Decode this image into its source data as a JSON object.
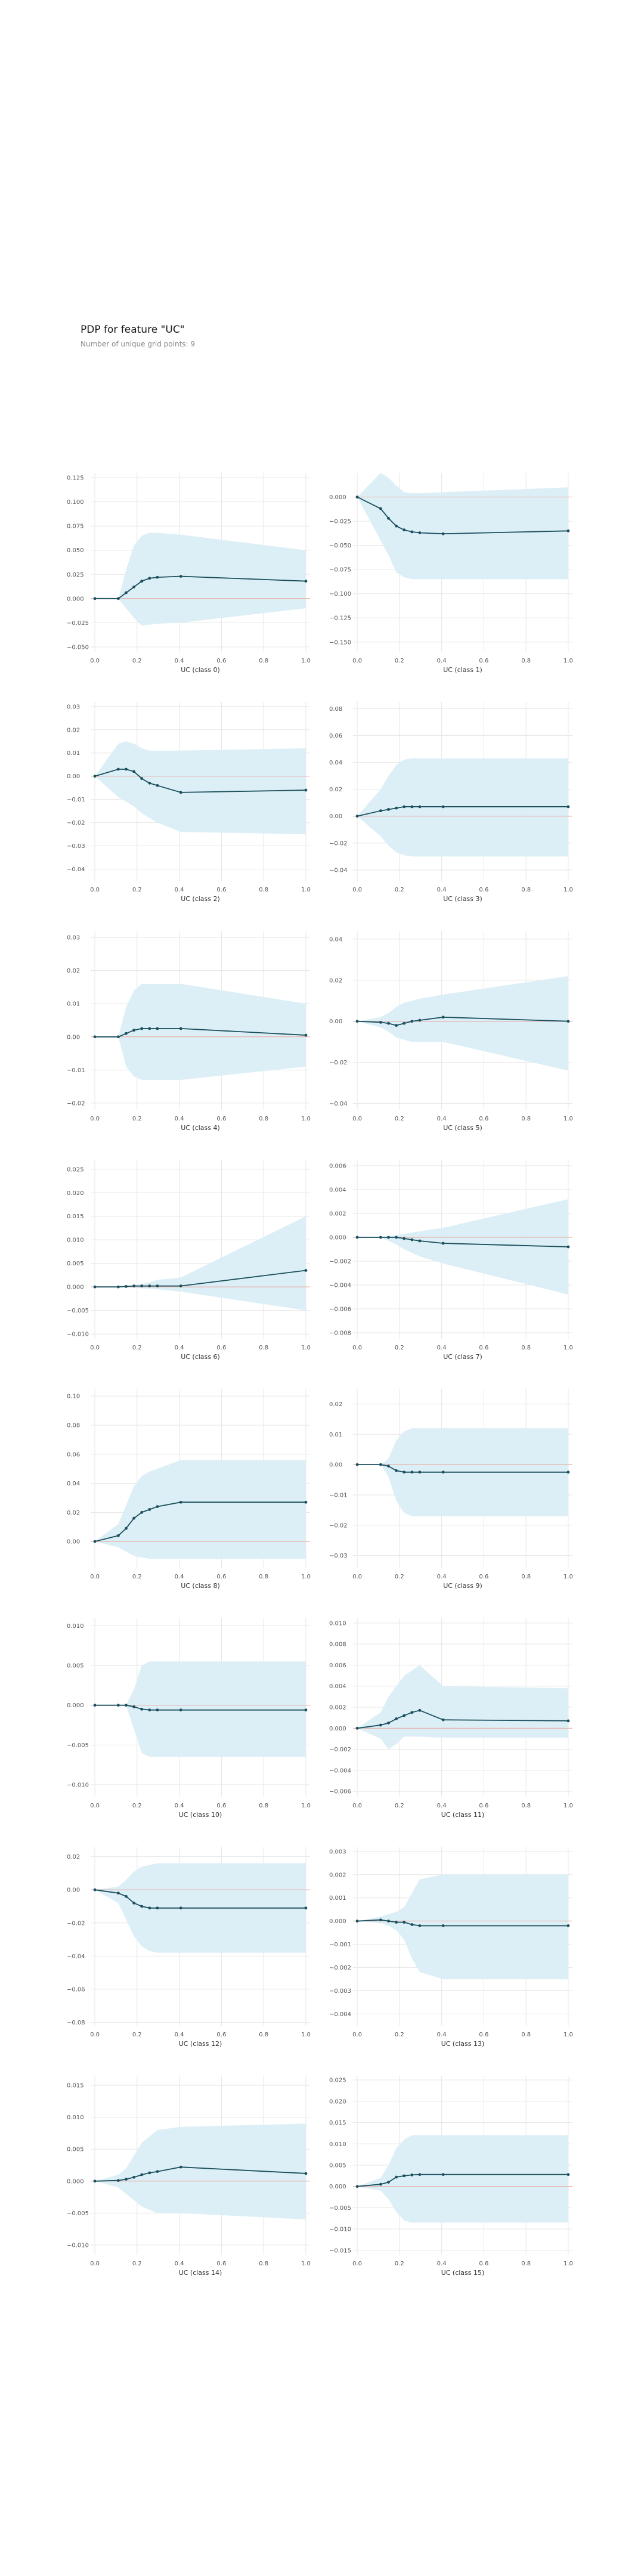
{
  "header": {
    "title": "PDP for feature \"UC\"",
    "subtitle": "Number of unique grid points: 9"
  },
  "colors": {
    "band": "#dbeef5",
    "line": "#1a4f5e",
    "marker": "#1a4f5e",
    "baseline": "#e8a49a",
    "grid": "#e6e6e6"
  },
  "chart_data": [
    {
      "type": "line",
      "xlabel": "UC (class 0)",
      "grid": true,
      "x": [
        0.0,
        0.1111,
        0.1481,
        0.1852,
        0.2222,
        0.2593,
        0.2963,
        0.4074,
        1.0
      ],
      "xticks": [
        0.0,
        0.2,
        0.4,
        0.6,
        0.8,
        1.0
      ],
      "xlim": [
        -0.02,
        1.02
      ],
      "yticks": [
        -0.05,
        -0.025,
        0.0,
        0.025,
        0.05,
        0.075,
        0.1,
        0.125
      ],
      "ytick_labels": [
        "−0.050",
        "−0.025",
        "0.000",
        "0.025",
        "0.050",
        "0.075",
        "0.100",
        "0.125"
      ],
      "ylim": [
        -0.055,
        0.13
      ],
      "values": [
        0.0,
        0.0,
        0.006,
        0.012,
        0.018,
        0.021,
        0.022,
        0.023,
        0.018
      ],
      "upper": [
        0.0,
        0.0,
        0.03,
        0.055,
        0.065,
        0.068,
        0.068,
        0.066,
        0.05
      ],
      "lower": [
        0.0,
        0.0,
        -0.01,
        -0.02,
        -0.028,
        -0.027,
        -0.026,
        -0.025,
        -0.01
      ]
    },
    {
      "type": "line",
      "xlabel": "UC (class 1)",
      "grid": true,
      "x": [
        0.0,
        0.1111,
        0.1481,
        0.1852,
        0.2222,
        0.2593,
        0.2963,
        0.4074,
        1.0
      ],
      "xticks": [
        0.0,
        0.2,
        0.4,
        0.6,
        0.8,
        1.0
      ],
      "xlim": [
        -0.02,
        1.02
      ],
      "yticks": [
        -0.15,
        -0.125,
        -0.1,
        -0.075,
        -0.05,
        -0.025,
        0.0
      ],
      "ytick_labels": [
        "−0.150",
        "−0.125",
        "−0.100",
        "−0.075",
        "−0.050",
        "−0.025",
        "0.000"
      ],
      "ylim": [
        -0.16,
        0.025
      ],
      "values": [
        0.0,
        -0.012,
        -0.022,
        -0.03,
        -0.034,
        -0.036,
        -0.037,
        -0.038,
        -0.035
      ],
      "upper": [
        0.0,
        0.025,
        0.02,
        0.012,
        0.005,
        0.004,
        0.004,
        0.005,
        0.01
      ],
      "lower": [
        0.0,
        -0.045,
        -0.06,
        -0.078,
        -0.083,
        -0.085,
        -0.085,
        -0.085,
        -0.085
      ]
    },
    {
      "type": "line",
      "xlabel": "UC (class 2)",
      "grid": true,
      "x": [
        0.0,
        0.1111,
        0.1481,
        0.1852,
        0.2222,
        0.2593,
        0.2963,
        0.4074,
        1.0
      ],
      "xticks": [
        0.0,
        0.2,
        0.4,
        0.6,
        0.8,
        1.0
      ],
      "xlim": [
        -0.02,
        1.02
      ],
      "yticks": [
        -0.04,
        -0.03,
        -0.02,
        -0.01,
        0.0,
        0.01,
        0.02,
        0.03
      ],
      "ytick_labels": [
        "−0.04",
        "−0.03",
        "−0.02",
        "−0.01",
        "0.00",
        "0.01",
        "0.02",
        "0.03"
      ],
      "ylim": [
        -0.045,
        0.032
      ],
      "values": [
        0.0,
        0.003,
        0.003,
        0.002,
        -0.001,
        -0.003,
        -0.004,
        -0.007,
        -0.006
      ],
      "upper": [
        0.0,
        0.014,
        0.015,
        0.014,
        0.012,
        0.011,
        0.011,
        0.011,
        0.012
      ],
      "lower": [
        0.0,
        -0.009,
        -0.011,
        -0.013,
        -0.016,
        -0.018,
        -0.02,
        -0.024,
        -0.025
      ]
    },
    {
      "type": "line",
      "xlabel": "UC (class 3)",
      "grid": true,
      "x": [
        0.0,
        0.1111,
        0.1481,
        0.1852,
        0.2222,
        0.2593,
        0.2963,
        0.4074,
        1.0
      ],
      "xticks": [
        0.0,
        0.2,
        0.4,
        0.6,
        0.8,
        1.0
      ],
      "xlim": [
        -0.02,
        1.02
      ],
      "yticks": [
        -0.04,
        -0.02,
        0.0,
        0.02,
        0.04,
        0.06,
        0.08
      ],
      "ytick_labels": [
        "−0.04",
        "−0.02",
        "0.00",
        "0.02",
        "0.04",
        "0.06",
        "0.08"
      ],
      "ylim": [
        -0.048,
        0.085
      ],
      "values": [
        0.0,
        0.004,
        0.005,
        0.006,
        0.007,
        0.007,
        0.007,
        0.007,
        0.007
      ],
      "upper": [
        0.0,
        0.02,
        0.03,
        0.038,
        0.042,
        0.043,
        0.043,
        0.043,
        0.043
      ],
      "lower": [
        0.0,
        -0.015,
        -0.022,
        -0.027,
        -0.029,
        -0.03,
        -0.03,
        -0.03,
        -0.03
      ]
    },
    {
      "type": "line",
      "xlabel": "UC (class 4)",
      "grid": true,
      "x": [
        0.0,
        0.1111,
        0.1481,
        0.1852,
        0.2222,
        0.2593,
        0.2963,
        0.4074,
        1.0
      ],
      "xticks": [
        0.0,
        0.2,
        0.4,
        0.6,
        0.8,
        1.0
      ],
      "xlim": [
        -0.02,
        1.02
      ],
      "yticks": [
        -0.02,
        -0.01,
        0.0,
        0.01,
        0.02,
        0.03
      ],
      "ytick_labels": [
        "−0.02",
        "−0.01",
        "0.00",
        "0.01",
        "0.02",
        "0.03"
      ],
      "ylim": [
        -0.022,
        0.032
      ],
      "values": [
        0.0,
        0.0,
        0.001,
        0.002,
        0.0025,
        0.0025,
        0.0025,
        0.0025,
        0.0005
      ],
      "upper": [
        0.0,
        0.0,
        0.009,
        0.014,
        0.016,
        0.016,
        0.016,
        0.016,
        0.01
      ],
      "lower": [
        0.0,
        0.0,
        -0.009,
        -0.012,
        -0.013,
        -0.013,
        -0.013,
        -0.013,
        -0.009
      ]
    },
    {
      "type": "line",
      "xlabel": "UC (class 5)",
      "grid": true,
      "x": [
        0.0,
        0.1111,
        0.1481,
        0.1852,
        0.2222,
        0.2593,
        0.2963,
        0.4074,
        1.0
      ],
      "xticks": [
        0.0,
        0.2,
        0.4,
        0.6,
        0.8,
        1.0
      ],
      "xlim": [
        -0.02,
        1.02
      ],
      "yticks": [
        -0.04,
        -0.02,
        0.0,
        0.02,
        0.04
      ],
      "ytick_labels": [
        "−0.04",
        "−0.02",
        "0.00",
        "0.02",
        "0.04"
      ],
      "ylim": [
        -0.043,
        0.044
      ],
      "values": [
        0.0,
        -0.0005,
        -0.001,
        -0.002,
        -0.001,
        0.0,
        0.0005,
        0.002,
        0.0
      ],
      "upper": [
        0.0,
        0.002,
        0.004,
        0.007,
        0.009,
        0.01,
        0.011,
        0.013,
        0.022
      ],
      "lower": [
        0.0,
        -0.003,
        -0.005,
        -0.008,
        -0.009,
        -0.01,
        -0.01,
        -0.01,
        -0.024
      ]
    },
    {
      "type": "line",
      "xlabel": "UC (class 6)",
      "grid": true,
      "x": [
        0.0,
        0.1111,
        0.1481,
        0.1852,
        0.2222,
        0.2593,
        0.2963,
        0.4074,
        1.0
      ],
      "xticks": [
        0.0,
        0.2,
        0.4,
        0.6,
        0.8,
        1.0
      ],
      "xlim": [
        -0.02,
        1.02
      ],
      "yticks": [
        -0.01,
        -0.005,
        0.0,
        0.005,
        0.01,
        0.015,
        0.02,
        0.025
      ],
      "ytick_labels": [
        "−0.010",
        "−0.005",
        "0.000",
        "0.005",
        "0.010",
        "0.015",
        "0.020",
        "0.025"
      ],
      "ylim": [
        -0.011,
        0.027
      ],
      "values": [
        0.0,
        0.0,
        0.0001,
        0.0002,
        0.0002,
        0.0002,
        0.0002,
        0.0002,
        0.0035
      ],
      "upper": [
        0.0,
        0.0,
        0.0002,
        0.0004,
        0.0006,
        0.001,
        0.0015,
        0.002,
        0.015
      ],
      "lower": [
        0.0,
        0.0,
        -0.0001,
        -0.0002,
        -0.0003,
        -0.0004,
        -0.0005,
        -0.001,
        -0.005
      ]
    },
    {
      "type": "line",
      "xlabel": "UC (class 7)",
      "grid": true,
      "x": [
        0.0,
        0.1111,
        0.1481,
        0.1852,
        0.2222,
        0.2593,
        0.2963,
        0.4074,
        1.0
      ],
      "xticks": [
        0.0,
        0.2,
        0.4,
        0.6,
        0.8,
        1.0
      ],
      "xlim": [
        -0.02,
        1.02
      ],
      "yticks": [
        -0.008,
        -0.006,
        -0.004,
        -0.002,
        0.0,
        0.002,
        0.004,
        0.006
      ],
      "ytick_labels": [
        "−0.008",
        "−0.006",
        "−0.004",
        "−0.002",
        "0.000",
        "0.002",
        "0.004",
        "0.006"
      ],
      "ylim": [
        -0.0085,
        0.0065
      ],
      "values": [
        0.0,
        0.0,
        0.0,
        0.0,
        -0.0001,
        -0.0002,
        -0.0003,
        -0.0005,
        -0.0008
      ],
      "upper": [
        0.0,
        0.0,
        0.0001,
        0.0002,
        0.0003,
        0.0004,
        0.0005,
        0.0008,
        0.0032
      ],
      "lower": [
        0.0,
        0.0,
        -0.0003,
        -0.0006,
        -0.001,
        -0.0013,
        -0.0016,
        -0.0022,
        -0.0048
      ]
    },
    {
      "type": "line",
      "xlabel": "UC (class 8)",
      "grid": true,
      "x": [
        0.0,
        0.1111,
        0.1481,
        0.1852,
        0.2222,
        0.2593,
        0.2963,
        0.4074,
        1.0
      ],
      "xticks": [
        0.0,
        0.2,
        0.4,
        0.6,
        0.8,
        1.0
      ],
      "xlim": [
        -0.02,
        1.02
      ],
      "yticks": [
        0.0,
        0.02,
        0.04,
        0.06,
        0.08,
        0.1
      ],
      "ytick_labels": [
        "0.00",
        "0.02",
        "0.04",
        "0.06",
        "0.08",
        "0.10"
      ],
      "ylim": [
        -0.018,
        0.105
      ],
      "values": [
        0.0,
        0.004,
        0.009,
        0.016,
        0.02,
        0.022,
        0.024,
        0.027,
        0.027
      ],
      "upper": [
        0.0,
        0.012,
        0.025,
        0.038,
        0.045,
        0.048,
        0.05,
        0.056,
        0.056
      ],
      "lower": [
        0.0,
        -0.004,
        -0.007,
        -0.01,
        -0.011,
        -0.012,
        -0.012,
        -0.012,
        -0.012
      ]
    },
    {
      "type": "line",
      "xlabel": "UC (class 9)",
      "grid": true,
      "x": [
        0.0,
        0.1111,
        0.1481,
        0.1852,
        0.2222,
        0.2593,
        0.2963,
        0.4074,
        1.0
      ],
      "xticks": [
        0.0,
        0.2,
        0.4,
        0.6,
        0.8,
        1.0
      ],
      "xlim": [
        -0.02,
        1.02
      ],
      "yticks": [
        -0.03,
        -0.02,
        -0.01,
        0.0,
        0.01,
        0.02
      ],
      "ytick_labels": [
        "−0.03",
        "−0.02",
        "−0.01",
        "0.00",
        "0.01",
        "0.02"
      ],
      "ylim": [
        -0.034,
        0.025
      ],
      "values": [
        0.0,
        0.0,
        -0.0005,
        -0.002,
        -0.0025,
        -0.0025,
        -0.0025,
        -0.0025,
        -0.0025
      ],
      "upper": [
        0.0,
        0.0,
        0.002,
        0.008,
        0.011,
        0.012,
        0.012,
        0.012,
        0.012
      ],
      "lower": [
        0.0,
        0.0,
        -0.004,
        -0.012,
        -0.016,
        -0.017,
        -0.017,
        -0.017,
        -0.017
      ]
    },
    {
      "type": "line",
      "xlabel": "UC (class 10)",
      "grid": true,
      "x": [
        0.0,
        0.1111,
        0.1481,
        0.1852,
        0.2222,
        0.2593,
        0.2963,
        0.4074,
        1.0
      ],
      "xticks": [
        0.0,
        0.2,
        0.4,
        0.6,
        0.8,
        1.0
      ],
      "xlim": [
        -0.02,
        1.02
      ],
      "yticks": [
        -0.01,
        -0.005,
        0.0,
        0.005,
        0.01
      ],
      "ytick_labels": [
        "−0.010",
        "−0.005",
        "0.000",
        "0.005",
        "0.010"
      ],
      "ylim": [
        -0.0115,
        0.011
      ],
      "values": [
        0.0,
        0.0,
        0.0,
        -0.0002,
        -0.0005,
        -0.0006,
        -0.0006,
        -0.0006,
        -0.0006
      ],
      "upper": [
        0.0,
        0.0,
        0.0,
        0.002,
        0.005,
        0.0055,
        0.0055,
        0.0055,
        0.0055
      ],
      "lower": [
        0.0,
        0.0,
        0.0,
        -0.003,
        -0.006,
        -0.0065,
        -0.0065,
        -0.0065,
        -0.0065
      ]
    },
    {
      "type": "line",
      "xlabel": "UC (class 11)",
      "grid": true,
      "x": [
        0.0,
        0.1111,
        0.1481,
        0.1852,
        0.2222,
        0.2593,
        0.2963,
        0.4074,
        1.0
      ],
      "xticks": [
        0.0,
        0.2,
        0.4,
        0.6,
        0.8,
        1.0
      ],
      "xlim": [
        -0.02,
        1.02
      ],
      "yticks": [
        -0.006,
        -0.004,
        -0.002,
        0.0,
        0.002,
        0.004,
        0.006,
        0.008,
        0.01
      ],
      "ytick_labels": [
        "−0.006",
        "−0.004",
        "−0.002",
        "0.000",
        "0.002",
        "0.004",
        "0.006",
        "0.008",
        "0.010"
      ],
      "ylim": [
        -0.0065,
        0.0105
      ],
      "values": [
        0.0,
        0.0003,
        0.0005,
        0.0009,
        0.0012,
        0.0015,
        0.0017,
        0.0008,
        0.0007
      ],
      "upper": [
        0.0,
        0.0015,
        0.003,
        0.004,
        0.005,
        0.0055,
        0.006,
        0.004,
        0.0038
      ],
      "lower": [
        0.0,
        -0.001,
        -0.002,
        -0.0015,
        -0.0008,
        -0.0008,
        -0.0008,
        -0.0009,
        -0.0009
      ]
    },
    {
      "type": "line",
      "xlabel": "UC (class 12)",
      "grid": true,
      "x": [
        0.0,
        0.1111,
        0.1481,
        0.1852,
        0.2222,
        0.2593,
        0.2963,
        0.4074,
        1.0
      ],
      "xticks": [
        0.0,
        0.2,
        0.4,
        0.6,
        0.8,
        1.0
      ],
      "xlim": [
        -0.02,
        1.02
      ],
      "yticks": [
        -0.08,
        -0.06,
        -0.04,
        -0.02,
        0.0,
        0.02
      ],
      "ytick_labels": [
        "−0.08",
        "−0.06",
        "−0.04",
        "−0.02",
        "0.00",
        "0.02"
      ],
      "ylim": [
        -0.082,
        0.026
      ],
      "values": [
        0.0,
        -0.002,
        -0.004,
        -0.008,
        -0.01,
        -0.011,
        -0.011,
        -0.011,
        -0.011
      ],
      "upper": [
        0.0,
        0.002,
        0.006,
        0.011,
        0.014,
        0.015,
        0.016,
        0.016,
        0.016
      ],
      "lower": [
        0.0,
        -0.008,
        -0.018,
        -0.028,
        -0.034,
        -0.037,
        -0.038,
        -0.038,
        -0.038
      ]
    },
    {
      "type": "line",
      "xlabel": "UC (class 13)",
      "grid": true,
      "x": [
        0.0,
        0.1111,
        0.1481,
        0.1852,
        0.2222,
        0.2593,
        0.2963,
        0.4074,
        1.0
      ],
      "xticks": [
        0.0,
        0.2,
        0.4,
        0.6,
        0.8,
        1.0
      ],
      "xlim": [
        -0.02,
        1.02
      ],
      "yticks": [
        -0.004,
        -0.003,
        -0.002,
        -0.001,
        0.0,
        0.001,
        0.002,
        0.003
      ],
      "ytick_labels": [
        "−0.004",
        "−0.003",
        "−0.002",
        "−0.001",
        "0.000",
        "0.001",
        "0.002",
        "0.003"
      ],
      "ylim": [
        -0.0045,
        0.0032
      ],
      "values": [
        0.0,
        5e-05,
        0.0,
        -5e-05,
        -5e-05,
        -0.00015,
        -0.0002,
        -0.0002,
        -0.0002
      ],
      "upper": [
        0.0,
        0.0002,
        0.0003,
        0.0004,
        0.0006,
        0.0012,
        0.0018,
        0.002,
        0.002
      ],
      "lower": [
        0.0,
        -0.0001,
        -0.0002,
        -0.0004,
        -0.0008,
        -0.0016,
        -0.0022,
        -0.0025,
        -0.0025
      ]
    },
    {
      "type": "line",
      "xlabel": "UC (class 14)",
      "grid": true,
      "x": [
        0.0,
        0.1111,
        0.1481,
        0.1852,
        0.2222,
        0.2593,
        0.2963,
        0.4074,
        1.0
      ],
      "xticks": [
        0.0,
        0.2,
        0.4,
        0.6,
        0.8,
        1.0
      ],
      "xlim": [
        -0.02,
        1.02
      ],
      "yticks": [
        -0.01,
        -0.005,
        0.0,
        0.005,
        0.01,
        0.015
      ],
      "ytick_labels": [
        "−0.010",
        "−0.005",
        "0.000",
        "0.005",
        "0.010",
        "0.015"
      ],
      "ylim": [
        -0.0115,
        0.0165
      ],
      "values": [
        0.0,
        0.0001,
        0.0003,
        0.0006,
        0.001,
        0.0013,
        0.0015,
        0.0022,
        0.0012
      ],
      "upper": [
        0.0,
        0.001,
        0.002,
        0.004,
        0.006,
        0.007,
        0.008,
        0.0085,
        0.009
      ],
      "lower": [
        0.0,
        -0.001,
        -0.002,
        -0.003,
        -0.004,
        -0.0045,
        -0.005,
        -0.005,
        -0.006
      ]
    },
    {
      "type": "line",
      "xlabel": "UC (class 15)",
      "grid": true,
      "x": [
        0.0,
        0.1111,
        0.1481,
        0.1852,
        0.2222,
        0.2593,
        0.2963,
        0.4074,
        1.0
      ],
      "xticks": [
        0.0,
        0.2,
        0.4,
        0.6,
        0.8,
        1.0
      ],
      "xlim": [
        -0.02,
        1.02
      ],
      "yticks": [
        -0.015,
        -0.01,
        -0.005,
        0.0,
        0.005,
        0.01,
        0.015,
        0.02,
        0.025
      ],
      "ytick_labels": [
        "−0.015",
        "−0.010",
        "−0.005",
        "0.000",
        "0.005",
        "0.010",
        "0.015",
        "0.020",
        "0.025"
      ],
      "ylim": [
        -0.016,
        0.026
      ],
      "values": [
        0.0,
        0.0005,
        0.001,
        0.0022,
        0.0025,
        0.0027,
        0.0028,
        0.0028,
        0.0028
      ],
      "upper": [
        0.0,
        0.002,
        0.005,
        0.009,
        0.011,
        0.012,
        0.012,
        0.012,
        0.012
      ],
      "lower": [
        0.0,
        -0.001,
        -0.003,
        -0.006,
        -0.008,
        -0.0085,
        -0.0085,
        -0.0085,
        -0.0085
      ]
    }
  ]
}
